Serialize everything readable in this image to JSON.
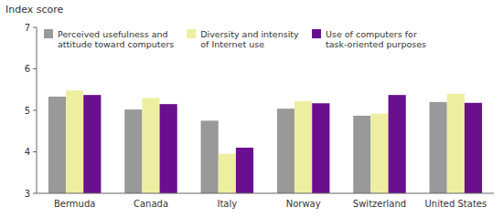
{
  "chart_data": {
    "type": "bar",
    "ylabel": "Index score",
    "categories": [
      "Bermuda",
      "Canada",
      "Italy",
      "Norway",
      "Switzerland",
      "United States"
    ],
    "series": [
      {
        "name": "Perceived usefulness and\nattitude toward computers",
        "color": "#999999",
        "values": [
          5.33,
          5.02,
          4.75,
          5.04,
          4.87,
          5.2
        ]
      },
      {
        "name": "Diversity and intensity\nof Internet use",
        "color": "#eeeea0",
        "values": [
          5.48,
          5.3,
          3.95,
          5.22,
          4.92,
          5.4
        ]
      },
      {
        "name": "Use of computers for\ntask-oriented purposes",
        "color": "#6a0f8e",
        "values": [
          5.37,
          5.15,
          4.1,
          5.17,
          5.37,
          5.18
        ]
      }
    ],
    "ylim": [
      3,
      7
    ],
    "yticks": [
      3,
      4,
      5,
      6,
      7
    ],
    "grid": false,
    "legend": "upper-left"
  }
}
